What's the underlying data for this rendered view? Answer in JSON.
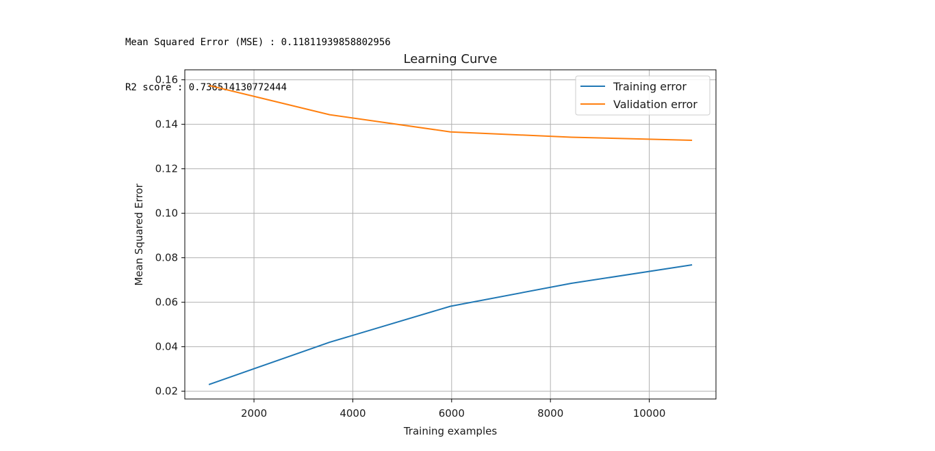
{
  "output": {
    "mse_line": "Mean Squared Error (MSE) : 0.11811939858802956",
    "r2_line": "R2 score : 0.736514130772444"
  },
  "chart_data": {
    "type": "line",
    "title": "Learning Curve",
    "xlabel": "Training examples",
    "ylabel": "Mean Squared Error",
    "xlim": [
      600,
      11350
    ],
    "ylim": [
      0.0165,
      0.1645
    ],
    "xticks": [
      2000,
      4000,
      6000,
      8000,
      10000
    ],
    "yticks": [
      0.02,
      0.04,
      0.06,
      0.08,
      0.1,
      0.12,
      0.14,
      0.16
    ],
    "grid": true,
    "legend_position": "top-right",
    "series": [
      {
        "name": "Training error",
        "color": "#1f77b4",
        "x": [
          1086,
          3531,
          5976,
          8421,
          10866
        ],
        "y": [
          0.023,
          0.042,
          0.0582,
          0.0685,
          0.0768
        ]
      },
      {
        "name": "Validation error",
        "color": "#ff7f0e",
        "x": [
          1086,
          3531,
          5976,
          8421,
          10866
        ],
        "y": [
          0.1575,
          0.1443,
          0.1366,
          0.1342,
          0.1328
        ]
      }
    ]
  }
}
